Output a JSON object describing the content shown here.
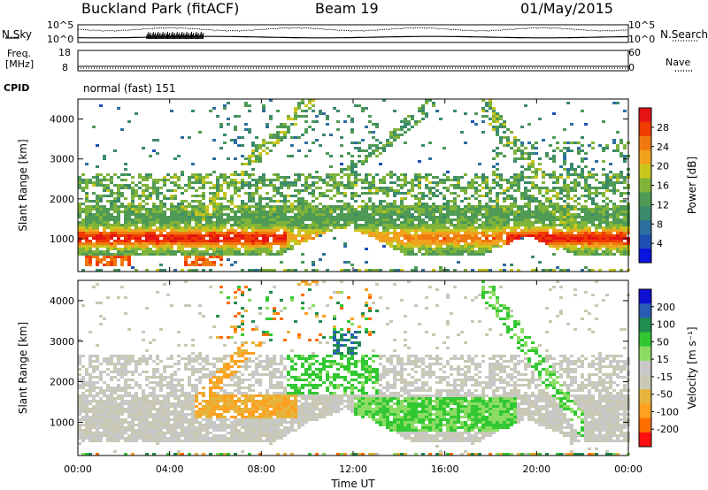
{
  "header": {
    "site": "Buckland Park (fitACF)",
    "beam": "Beam 19",
    "date": "01/May/2015"
  },
  "strips": {
    "nsky_label": "N.Sky",
    "nsearch_label": "N.Search",
    "nsky_ticks": [
      "10^5",
      "10^0"
    ],
    "nsearch_ticks": [
      "10^5",
      "10^0"
    ],
    "freq_label": [
      "Freq.",
      "[MHz]"
    ],
    "freq_ticks": [
      "18",
      "8"
    ],
    "nave_label": "Nave",
    "nave_ticks": [
      "60",
      "0"
    ],
    "cpid_label": "CPID",
    "cpid_value": "normal (fast) 151"
  },
  "colors": {
    "power_scale": [
      "#0a14dc",
      "#1e50b4",
      "#2e6fa0",
      "#3b8a6a",
      "#4f9a55",
      "#7fb33a",
      "#c9c51d",
      "#f0a21e",
      "#f07a10",
      "#ee3c00",
      "#e61414"
    ],
    "velocity_scale": [
      "#ff1010",
      "#ff6e00",
      "#ffa020",
      "#e6b43c",
      "#c8c8b4",
      "#c8c8c8",
      "#8cdc64",
      "#32c832",
      "#208c50",
      "#2a5cb4",
      "#1010d0"
    ]
  },
  "chart_data": [
    {
      "type": "heatmap",
      "title": "",
      "xlabel": "Time UT",
      "ylabel": "Slant Range [km]",
      "x_ticks": [
        "00:00",
        "04:00",
        "08:00",
        "12:00",
        "16:00",
        "20:00",
        "00:00"
      ],
      "y_ticks": [
        "1000",
        "2000",
        "3000",
        "4000"
      ],
      "ylim": [
        180,
        4500
      ],
      "colorbar": {
        "label": "Power [dB]",
        "ticks": [
          "4",
          "8",
          "12",
          "16",
          "20",
          "24",
          "28"
        ],
        "range": [
          0,
          32
        ]
      }
    },
    {
      "type": "heatmap",
      "title": "",
      "xlabel": "Time UT",
      "ylabel": "Slant Range [km]",
      "x_ticks": [
        "00:00",
        "04:00",
        "08:00",
        "12:00",
        "16:00",
        "20:00",
        "00:00"
      ],
      "y_ticks": [
        "1000",
        "2000",
        "3000",
        "4000"
      ],
      "ylim": [
        180,
        4500
      ],
      "colorbar": {
        "label": "Velocity [m s⁻¹]",
        "ticks": [
          "200",
          "100",
          "50",
          "15",
          "-15",
          "-50",
          "-100",
          "-200"
        ]
      }
    }
  ]
}
